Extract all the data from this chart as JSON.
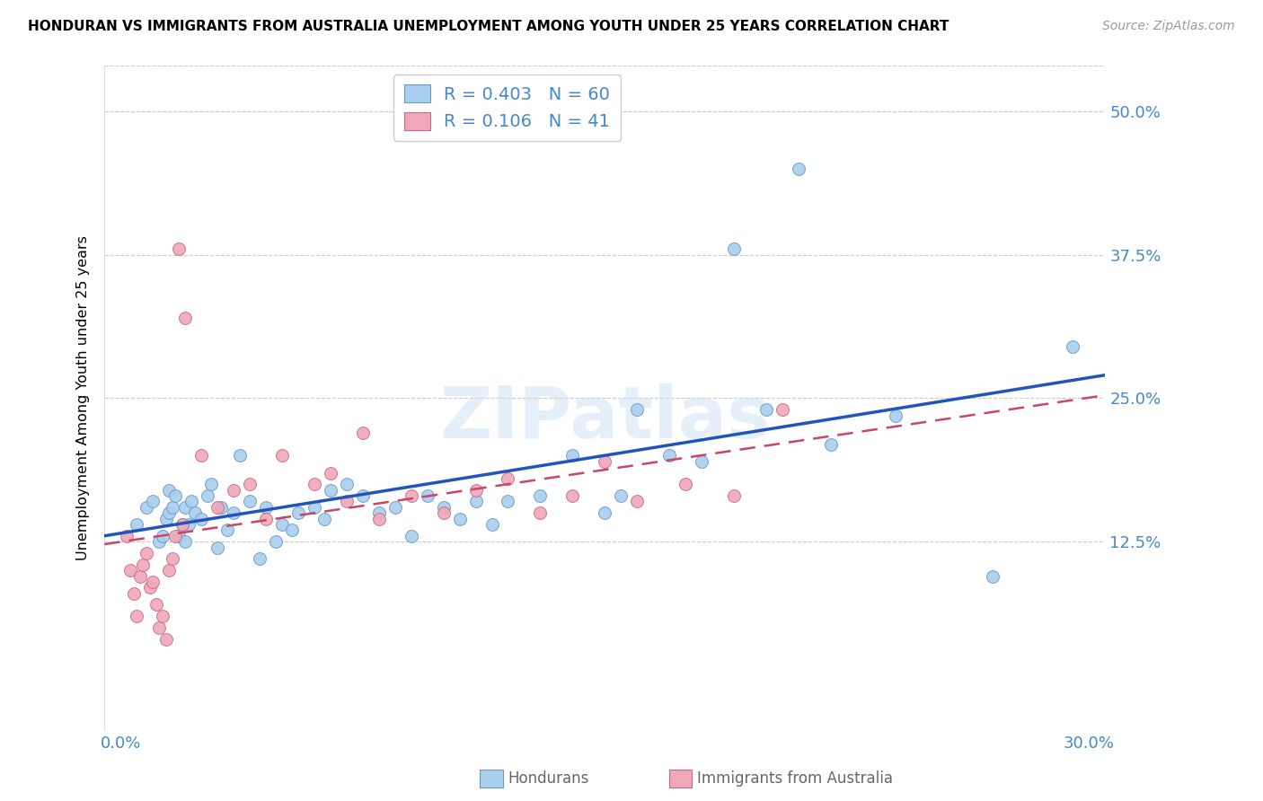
{
  "title": "HONDURAN VS IMMIGRANTS FROM AUSTRALIA UNEMPLOYMENT AMONG YOUTH UNDER 25 YEARS CORRELATION CHART",
  "source": "Source: ZipAtlas.com",
  "ylabel_label": "Unemployment Among Youth under 25 years",
  "ytick_labels": [
    "50.0%",
    "37.5%",
    "25.0%",
    "12.5%"
  ],
  "ytick_values": [
    0.5,
    0.375,
    0.25,
    0.125
  ],
  "xlim": [
    -0.005,
    0.305
  ],
  "ylim": [
    -0.04,
    0.54
  ],
  "watermark": "ZIPatlas",
  "honduran_color": "#aacfee",
  "honduran_edge": "#6699cc",
  "australia_color": "#f0a8b8",
  "australia_edge": "#cc6688",
  "line_honduran_color": "#2255bb",
  "line_australia_color": "#cc4466",
  "legend_label1": "R = 0.403   N = 60",
  "legend_label2": "R = 0.106   N = 41",
  "honduran_x": [
    0.005,
    0.008,
    0.01,
    0.012,
    0.013,
    0.014,
    0.015,
    0.015,
    0.016,
    0.017,
    0.018,
    0.019,
    0.02,
    0.02,
    0.021,
    0.022,
    0.023,
    0.025,
    0.027,
    0.028,
    0.03,
    0.031,
    0.033,
    0.035,
    0.037,
    0.04,
    0.043,
    0.045,
    0.048,
    0.05,
    0.053,
    0.055,
    0.06,
    0.063,
    0.065,
    0.07,
    0.075,
    0.08,
    0.085,
    0.09,
    0.095,
    0.1,
    0.105,
    0.11,
    0.115,
    0.12,
    0.13,
    0.14,
    0.15,
    0.155,
    0.16,
    0.17,
    0.18,
    0.19,
    0.2,
    0.21,
    0.22,
    0.24,
    0.27,
    0.295
  ],
  "honduran_y": [
    0.14,
    0.155,
    0.16,
    0.125,
    0.13,
    0.145,
    0.15,
    0.17,
    0.155,
    0.165,
    0.13,
    0.14,
    0.125,
    0.155,
    0.14,
    0.16,
    0.15,
    0.145,
    0.165,
    0.175,
    0.12,
    0.155,
    0.135,
    0.15,
    0.2,
    0.16,
    0.11,
    0.155,
    0.125,
    0.14,
    0.135,
    0.15,
    0.155,
    0.145,
    0.17,
    0.175,
    0.165,
    0.15,
    0.155,
    0.13,
    0.165,
    0.155,
    0.145,
    0.16,
    0.14,
    0.16,
    0.165,
    0.2,
    0.15,
    0.165,
    0.24,
    0.2,
    0.195,
    0.38,
    0.24,
    0.45,
    0.21,
    0.235,
    0.095,
    0.295
  ],
  "australia_x": [
    0.002,
    0.003,
    0.004,
    0.005,
    0.006,
    0.007,
    0.008,
    0.009,
    0.01,
    0.011,
    0.012,
    0.013,
    0.014,
    0.015,
    0.016,
    0.017,
    0.018,
    0.019,
    0.02,
    0.025,
    0.03,
    0.035,
    0.04,
    0.045,
    0.05,
    0.06,
    0.065,
    0.07,
    0.075,
    0.08,
    0.09,
    0.1,
    0.11,
    0.12,
    0.13,
    0.14,
    0.15,
    0.16,
    0.175,
    0.19,
    0.205
  ],
  "australia_y": [
    0.13,
    0.1,
    0.08,
    0.06,
    0.095,
    0.105,
    0.115,
    0.085,
    0.09,
    0.07,
    0.05,
    0.06,
    0.04,
    0.1,
    0.11,
    0.13,
    0.38,
    0.14,
    0.32,
    0.2,
    0.155,
    0.17,
    0.175,
    0.145,
    0.2,
    0.175,
    0.185,
    0.16,
    0.22,
    0.145,
    0.165,
    0.15,
    0.17,
    0.18,
    0.15,
    0.165,
    0.195,
    0.16,
    0.175,
    0.165,
    0.24
  ]
}
